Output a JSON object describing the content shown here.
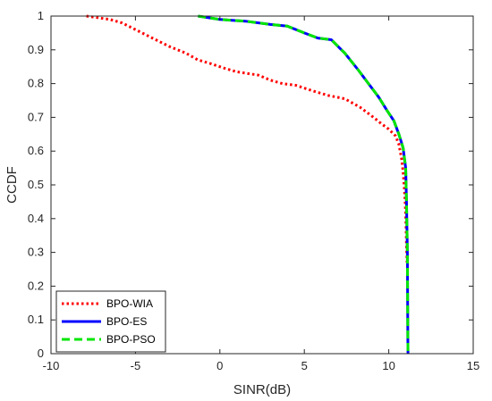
{
  "chart_data": {
    "type": "line",
    "title": "",
    "xlabel": "SINR(dB)",
    "ylabel": "CCDF",
    "xlim": [
      -10,
      15
    ],
    "ylim": [
      0,
      1
    ],
    "x_ticks": [
      "-10",
      "-5",
      "0",
      "5",
      "10",
      "15"
    ],
    "y_ticks": [
      "0",
      "0.1",
      "0.2",
      "0.3",
      "0.4",
      "0.5",
      "0.6",
      "0.7",
      "0.8",
      "0.9",
      "1"
    ],
    "grid": false,
    "legend_position": "bottom-left",
    "series": [
      {
        "name": "BPO-WIA",
        "color": "#ff0000",
        "style": "dotted",
        "x": [
          -7.9,
          -6.5,
          -5.8,
          -5.0,
          -4.0,
          -3.0,
          -2.0,
          -1.3,
          -0.6,
          0.3,
          1.0,
          2.3,
          3.0,
          3.7,
          4.5,
          5.4,
          6.4,
          7.4,
          8.3,
          9.1,
          9.6,
          10.0,
          10.4,
          10.6,
          10.75,
          10.85,
          10.92,
          10.98,
          11.02,
          11.05,
          11.07,
          11.08
        ],
        "y": [
          1.0,
          0.99,
          0.98,
          0.96,
          0.935,
          0.91,
          0.89,
          0.87,
          0.86,
          0.845,
          0.835,
          0.825,
          0.81,
          0.8,
          0.795,
          0.78,
          0.765,
          0.755,
          0.73,
          0.7,
          0.68,
          0.665,
          0.645,
          0.62,
          0.58,
          0.54,
          0.49,
          0.44,
          0.38,
          0.32,
          0.29,
          0.27
        ]
      },
      {
        "name": "BPO-ES",
        "color": "#0000ff",
        "style": "solid",
        "x": [
          -1.3,
          0.0,
          1.5,
          3.0,
          4.0,
          5.0,
          5.8,
          6.6,
          7.4,
          8.2,
          8.8,
          9.4,
          9.9,
          10.3,
          10.6,
          10.85,
          11.0,
          11.05,
          11.1,
          11.12,
          11.13,
          11.14
        ],
        "y": [
          1.0,
          0.99,
          0.985,
          0.975,
          0.97,
          0.95,
          0.935,
          0.93,
          0.89,
          0.84,
          0.8,
          0.76,
          0.72,
          0.69,
          0.65,
          0.61,
          0.55,
          0.45,
          0.3,
          0.15,
          0.05,
          0.0
        ]
      },
      {
        "name": "BPO-PSO",
        "color": "#00e600",
        "style": "dashed",
        "x": [
          -1.3,
          0.0,
          1.5,
          3.0,
          4.0,
          5.0,
          5.8,
          6.6,
          7.4,
          8.2,
          8.8,
          9.4,
          9.9,
          10.3,
          10.6,
          10.85,
          11.0,
          11.05,
          11.1,
          11.12,
          11.13,
          11.14
        ],
        "y": [
          1.0,
          0.99,
          0.985,
          0.975,
          0.97,
          0.95,
          0.935,
          0.93,
          0.89,
          0.84,
          0.8,
          0.76,
          0.72,
          0.69,
          0.65,
          0.61,
          0.55,
          0.45,
          0.3,
          0.15,
          0.05,
          0.0
        ]
      }
    ]
  }
}
